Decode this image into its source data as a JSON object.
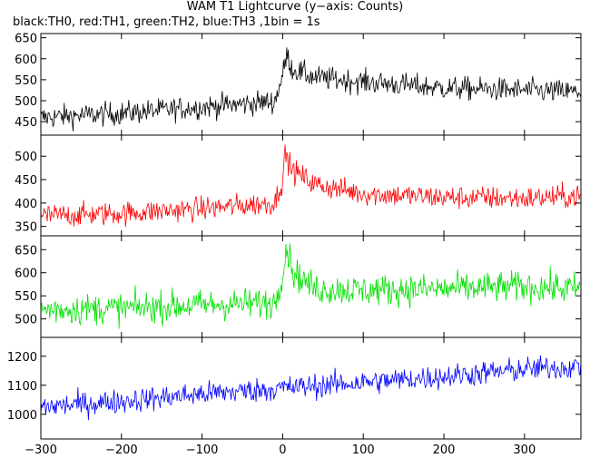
{
  "title": "WAM T1 Lightcurve (y−axis: Counts)",
  "subtitle": "black:TH0, red:TH1, green:TH2, blue:TH3 ,1bin = 1s",
  "chart_data": {
    "type": "line",
    "x_range": [
      -300,
      370
    ],
    "x_ticks": [
      -300,
      -200,
      -100,
      0,
      100,
      200,
      300
    ],
    "panels": [
      {
        "name": "TH0",
        "color": "#000000",
        "ylim": [
          418,
          660
        ],
        "y_ticks": [
          450,
          500,
          550,
          600,
          650
        ],
        "profile_points": [
          [
            -300,
            460
          ],
          [
            -200,
            470
          ],
          [
            -100,
            485
          ],
          [
            -10,
            498
          ],
          [
            0,
            560
          ],
          [
            5,
            610
          ],
          [
            12,
            575
          ],
          [
            40,
            555
          ],
          [
            100,
            545
          ],
          [
            200,
            530
          ],
          [
            300,
            525
          ],
          [
            370,
            520
          ]
        ],
        "noise": 20
      },
      {
        "name": "TH1",
        "color": "#ff0000",
        "ylim": [
          330,
          545
        ],
        "y_ticks": [
          350,
          400,
          450,
          500
        ],
        "profile_points": [
          [
            -300,
            372
          ],
          [
            -200,
            378
          ],
          [
            -100,
            388
          ],
          [
            -10,
            400
          ],
          [
            0,
            450
          ],
          [
            3,
            505
          ],
          [
            12,
            470
          ],
          [
            40,
            440
          ],
          [
            100,
            420
          ],
          [
            200,
            412
          ],
          [
            300,
            410
          ],
          [
            370,
            415
          ]
        ],
        "noise": 18
      },
      {
        "name": "TH2",
        "color": "#00e000",
        "ylim": [
          460,
          680
        ],
        "y_ticks": [
          500,
          550,
          600,
          650
        ],
        "profile_points": [
          [
            -300,
            520
          ],
          [
            -200,
            523
          ],
          [
            -100,
            530
          ],
          [
            -10,
            535
          ],
          [
            0,
            600
          ],
          [
            5,
            655
          ],
          [
            14,
            600
          ],
          [
            40,
            565
          ],
          [
            100,
            562
          ],
          [
            200,
            565
          ],
          [
            300,
            570
          ],
          [
            370,
            565
          ]
        ],
        "noise": 24
      },
      {
        "name": "TH3",
        "color": "#0000ff",
        "ylim": [
          915,
          1265
        ],
        "y_ticks": [
          1000,
          1100,
          1200
        ],
        "profile_points": [
          [
            -300,
            1025
          ],
          [
            -200,
            1045
          ],
          [
            -100,
            1070
          ],
          [
            0,
            1090
          ],
          [
            100,
            1110
          ],
          [
            200,
            1130
          ],
          [
            300,
            1155
          ],
          [
            370,
            1165
          ]
        ],
        "noise": 30
      }
    ]
  }
}
